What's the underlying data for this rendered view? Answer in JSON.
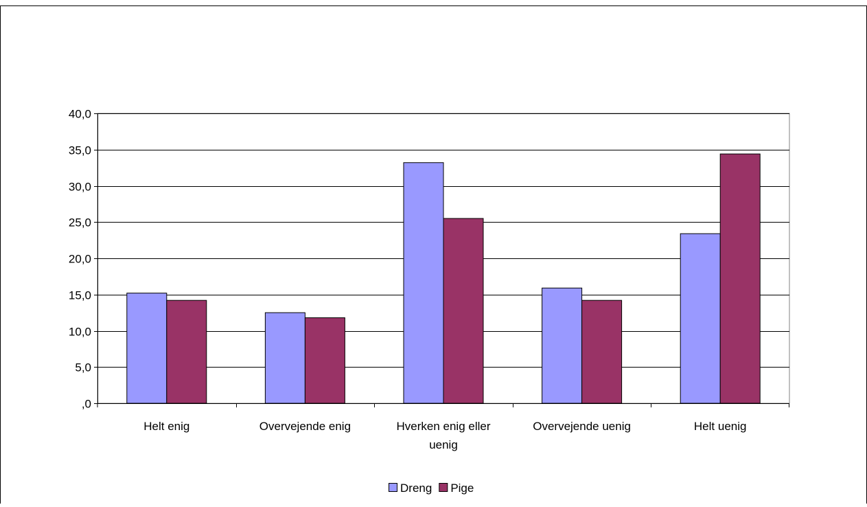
{
  "chart_data": {
    "type": "bar",
    "title": "",
    "xlabel": "",
    "ylabel": "",
    "categories": [
      [
        "Helt enig"
      ],
      [
        "Overvejende enig"
      ],
      [
        "Hverken enig eller",
        "uenig"
      ],
      [
        "Overvejende uenig"
      ],
      [
        "Helt uenig"
      ]
    ],
    "series": [
      {
        "name": "Dreng",
        "color": "#9999ff",
        "values": [
          15.2,
          12.5,
          33.2,
          15.9,
          23.4
        ]
      },
      {
        "name": "Pige",
        "color": "#993366",
        "values": [
          14.2,
          11.8,
          25.5,
          14.2,
          34.4
        ]
      }
    ],
    "ylim": [
      0,
      40
    ],
    "yticks": [
      {
        "value": 0,
        "label": ",0"
      },
      {
        "value": 5,
        "label": "5,0"
      },
      {
        "value": 10,
        "label": "10,0"
      },
      {
        "value": 15,
        "label": "15,0"
      },
      {
        "value": 20,
        "label": "20,0"
      },
      {
        "value": 25,
        "label": "25,0"
      },
      {
        "value": 30,
        "label": "30,0"
      },
      {
        "value": 35,
        "label": "35,0"
      },
      {
        "value": 40,
        "label": "40,0"
      }
    ],
    "grid": true,
    "legend_position": "bottom"
  }
}
